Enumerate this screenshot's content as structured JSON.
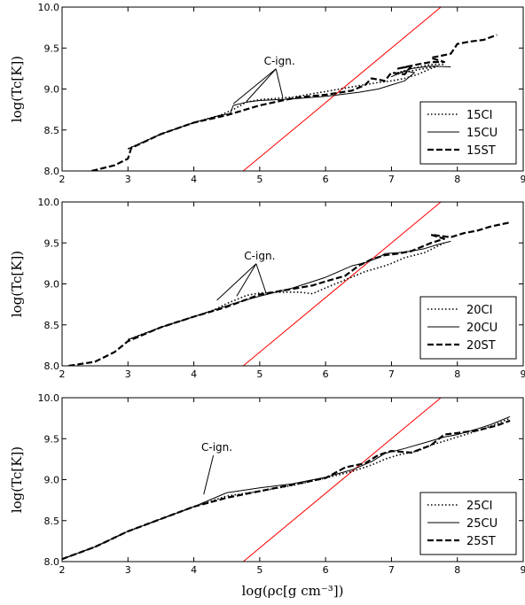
{
  "figure": {
    "xlabel": "log(ρc[g cm⁻³])"
  },
  "chart_data": [
    {
      "type": "line",
      "title": "",
      "xlabel": "log(ρc[g cm⁻³])",
      "ylabel": "log(Tc[K])",
      "xlim": [
        2,
        9
      ],
      "ylim": [
        8.0,
        10.0
      ],
      "xticks": [
        "2",
        "3",
        "4",
        "5",
        "6",
        "7",
        "8",
        "9"
      ],
      "yticks": [
        "8.0",
        "8.5",
        "9.0",
        "9.5",
        "10.0"
      ],
      "legend_position": "lower-right",
      "annotation": "C-ign.",
      "annotation_targets": [
        [
          4.6,
          8.82
        ],
        [
          4.8,
          8.85
        ],
        [
          5.35,
          8.9
        ]
      ],
      "annotation_text_at": [
        5.3,
        9.3
      ],
      "reference_line": {
        "color": "#ff0000",
        "x": [
          4.75,
          7.75
        ],
        "y": [
          8.0,
          10.0
        ]
      },
      "series": [
        {
          "name": "15CI",
          "style": "dotted",
          "x": [
            3.0,
            3.5,
            4.0,
            4.4,
            4.6,
            4.8,
            5.0,
            5.5,
            6.0,
            6.5,
            6.8,
            7.0,
            7.2,
            7.4,
            7.6,
            7.7,
            7.5,
            7.3,
            7.1,
            7.3,
            7.6,
            7.8
          ],
          "y": [
            8.27,
            8.45,
            8.59,
            8.68,
            8.75,
            8.84,
            8.87,
            8.9,
            8.97,
            9.04,
            9.08,
            9.1,
            9.13,
            9.18,
            9.25,
            9.28,
            9.25,
            9.22,
            9.2,
            9.25,
            9.3,
            9.3
          ]
        },
        {
          "name": "15CU",
          "style": "solid",
          "x": [
            3.0,
            3.5,
            4.0,
            4.4,
            4.55,
            4.6,
            4.8,
            5.0,
            5.5,
            6.0,
            6.5,
            6.8,
            7.0,
            7.2,
            7.35,
            7.2,
            7.0,
            7.3,
            7.6,
            7.9
          ],
          "y": [
            8.27,
            8.45,
            8.59,
            8.68,
            8.7,
            8.8,
            8.84,
            8.86,
            8.88,
            8.91,
            8.96,
            9.0,
            9.05,
            9.1,
            9.2,
            9.22,
            9.15,
            9.25,
            9.28,
            9.27
          ]
        },
        {
          "name": "15ST",
          "style": "dashed",
          "x": [
            2.45,
            2.8,
            3.0,
            3.05,
            3.5,
            4.0,
            4.5,
            5.0,
            5.4,
            5.6,
            6.0,
            6.4,
            6.6,
            6.7,
            6.9,
            7.0,
            7.2,
            7.3,
            7.1,
            7.4,
            7.6,
            7.8,
            7.6,
            7.9,
            8.0,
            8.2,
            8.4,
            8.6
          ],
          "y": [
            8.0,
            8.07,
            8.15,
            8.28,
            8.45,
            8.59,
            8.68,
            8.8,
            8.87,
            8.9,
            8.93,
            8.98,
            9.05,
            9.13,
            9.1,
            9.2,
            9.18,
            9.28,
            9.25,
            9.3,
            9.33,
            9.33,
            9.38,
            9.43,
            9.55,
            9.58,
            9.6,
            9.66
          ]
        }
      ]
    },
    {
      "type": "line",
      "title": "",
      "xlabel": "log(ρc[g cm⁻³])",
      "ylabel": "log(Tc[K])",
      "xlim": [
        2,
        9
      ],
      "ylim": [
        8.0,
        10.0
      ],
      "xticks": [
        "2",
        "3",
        "4",
        "5",
        "6",
        "7",
        "8",
        "9"
      ],
      "yticks": [
        "8.0",
        "8.5",
        "9.0",
        "9.5",
        "10.0"
      ],
      "legend_position": "lower-right",
      "annotation": "C-ign.",
      "annotation_targets": [
        [
          4.35,
          8.8
        ],
        [
          4.65,
          8.85
        ],
        [
          5.1,
          8.88
        ]
      ],
      "annotation_text_at": [
        5.0,
        9.3
      ],
      "reference_line": {
        "color": "#ff0000",
        "x": [
          4.75,
          7.75
        ],
        "y": [
          8.0,
          10.0
        ]
      },
      "series": [
        {
          "name": "20CI",
          "style": "dotted",
          "x": [
            3.0,
            3.5,
            4.0,
            4.3,
            4.5,
            4.8,
            5.0,
            5.3,
            5.6,
            5.8,
            6.0,
            6.3,
            6.6,
            6.9,
            7.0,
            7.2,
            7.5,
            7.8
          ],
          "y": [
            8.32,
            8.47,
            8.6,
            8.68,
            8.76,
            8.86,
            8.89,
            8.9,
            8.9,
            8.88,
            8.95,
            9.05,
            9.15,
            9.22,
            9.25,
            9.32,
            9.38,
            9.5
          ]
        },
        {
          "name": "20CU",
          "style": "solid",
          "x": [
            3.0,
            3.5,
            4.0,
            4.3,
            4.6,
            5.0,
            5.5,
            6.0,
            6.2,
            6.4,
            6.6,
            6.8,
            6.9,
            7.1,
            7.3,
            7.5,
            7.7,
            7.9
          ],
          "y": [
            8.32,
            8.47,
            8.6,
            8.68,
            8.76,
            8.85,
            8.95,
            9.08,
            9.15,
            9.22,
            9.26,
            9.32,
            9.37,
            9.38,
            9.4,
            9.43,
            9.48,
            9.52
          ]
        },
        {
          "name": "20ST",
          "style": "dashed",
          "x": [
            2.1,
            2.5,
            2.8,
            3.0,
            3.5,
            4.0,
            4.5,
            5.0,
            5.5,
            5.8,
            6.0,
            6.3,
            6.5,
            6.7,
            6.9,
            7.1,
            7.3,
            7.6,
            7.8,
            7.6,
            7.9,
            8.1,
            8.3,
            8.5,
            8.8
          ],
          "y": [
            8.0,
            8.05,
            8.17,
            8.3,
            8.47,
            8.6,
            8.72,
            8.87,
            8.94,
            8.98,
            9.03,
            9.1,
            9.22,
            9.3,
            9.35,
            9.37,
            9.4,
            9.5,
            9.55,
            9.6,
            9.57,
            9.62,
            9.65,
            9.7,
            9.75
          ]
        }
      ]
    },
    {
      "type": "line",
      "title": "",
      "xlabel": "log(ρc[g cm⁻³])",
      "ylabel": "log(Tc[K])",
      "xlim": [
        2,
        9
      ],
      "ylim": [
        8.0,
        10.0
      ],
      "xticks": [
        "2",
        "3",
        "4",
        "5",
        "6",
        "7",
        "8",
        "9"
      ],
      "yticks": [
        "8.0",
        "8.5",
        "9.0",
        "9.5",
        "10.0"
      ],
      "legend_position": "lower-right",
      "annotation": "C-ign.",
      "annotation_targets": [
        [
          4.15,
          8.82
        ]
      ],
      "annotation_text_at": [
        4.35,
        9.35
      ],
      "reference_line": {
        "color": "#ff0000",
        "x": [
          4.75,
          7.75
        ],
        "y": [
          8.0,
          10.0
        ]
      },
      "series": [
        {
          "name": "25CI",
          "style": "dotted",
          "x": [
            2.0,
            2.5,
            3.0,
            3.5,
            4.0,
            4.5,
            5.0,
            5.5,
            6.0,
            6.4,
            6.7,
            6.9,
            7.1,
            7.4,
            7.6,
            7.8,
            8.0,
            8.2,
            8.5,
            8.8
          ],
          "y": [
            8.03,
            8.18,
            8.37,
            8.52,
            8.67,
            8.8,
            8.86,
            8.93,
            9.02,
            9.1,
            9.18,
            9.25,
            9.3,
            9.35,
            9.42,
            9.47,
            9.52,
            9.57,
            9.65,
            9.75
          ]
        },
        {
          "name": "25CU",
          "style": "solid",
          "x": [
            2.0,
            2.5,
            3.0,
            3.5,
            4.0,
            4.5,
            5.0,
            5.5,
            6.0,
            6.4,
            6.7,
            6.9,
            7.2,
            7.5,
            7.8,
            8.0,
            8.3,
            8.5,
            8.8
          ],
          "y": [
            8.03,
            8.18,
            8.37,
            8.52,
            8.67,
            8.84,
            8.9,
            8.95,
            9.03,
            9.12,
            9.22,
            9.32,
            9.38,
            9.45,
            9.52,
            9.55,
            9.62,
            9.67,
            9.77
          ]
        },
        {
          "name": "25ST",
          "style": "dashed",
          "x": [
            2.0,
            2.5,
            3.0,
            3.5,
            4.0,
            4.5,
            5.0,
            5.5,
            6.0,
            6.3,
            6.6,
            6.8,
            7.0,
            7.3,
            7.6,
            7.8,
            8.0,
            8.3,
            8.6,
            8.8
          ],
          "y": [
            8.03,
            8.18,
            8.37,
            8.52,
            8.67,
            8.78,
            8.86,
            8.94,
            9.02,
            9.15,
            9.2,
            9.3,
            9.35,
            9.33,
            9.42,
            9.55,
            9.57,
            9.6,
            9.66,
            9.72
          ]
        }
      ]
    }
  ]
}
